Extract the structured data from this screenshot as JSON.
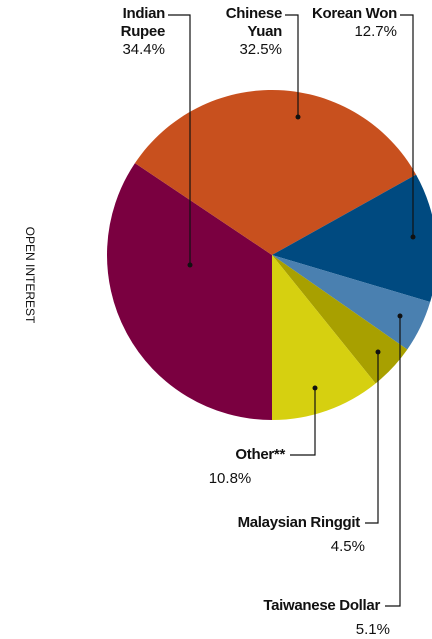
{
  "chart_data": {
    "type": "pie",
    "axis_label": "OPEN INTEREST",
    "categories": [
      "Indian Rupee",
      "Chinese Yuan",
      "Korean Won",
      "Taiwanese Dollar",
      "Malaysian Ringgit",
      "Other**"
    ],
    "values": [
      34.4,
      32.5,
      12.7,
      5.1,
      4.5,
      10.8
    ],
    "value_labels": [
      "34.4%",
      "32.5%",
      "12.7%",
      "5.1%",
      "4.5%",
      "10.8%"
    ],
    "colors": [
      "#7a0040",
      "#c8501e",
      "#004a80",
      "#4a80b0",
      "#a8a000",
      "#d6d010"
    ]
  }
}
